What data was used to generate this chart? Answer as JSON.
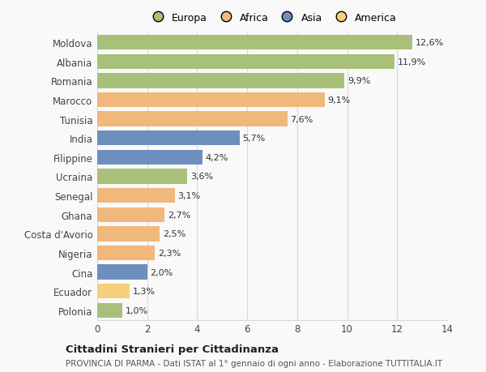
{
  "countries": [
    "Moldova",
    "Albania",
    "Romania",
    "Marocco",
    "Tunisia",
    "India",
    "Filippine",
    "Ucraina",
    "Senegal",
    "Ghana",
    "Costa d'Avorio",
    "Nigeria",
    "Cina",
    "Ecuador",
    "Polonia"
  ],
  "values": [
    12.6,
    11.9,
    9.9,
    9.1,
    7.6,
    5.7,
    4.2,
    3.6,
    3.1,
    2.7,
    2.5,
    2.3,
    2.0,
    1.3,
    1.0
  ],
  "labels": [
    "12,6%",
    "11,9%",
    "9,9%",
    "9,1%",
    "7,6%",
    "5,7%",
    "4,2%",
    "3,6%",
    "3,1%",
    "2,7%",
    "2,5%",
    "2,3%",
    "2,0%",
    "1,3%",
    "1,0%"
  ],
  "colors": [
    "#a8c07a",
    "#a8c07a",
    "#a8c07a",
    "#f0b87a",
    "#f0b87a",
    "#6e8fbe",
    "#6e8fbe",
    "#a8c07a",
    "#f0b87a",
    "#f0b87a",
    "#f0b87a",
    "#f0b87a",
    "#6e8fbe",
    "#f5d07a",
    "#a8c07a"
  ],
  "legend_labels": [
    "Europa",
    "Africa",
    "Asia",
    "America"
  ],
  "legend_colors": [
    "#a8c07a",
    "#f0b87a",
    "#6e8fbe",
    "#f5d07a"
  ],
  "title": "Cittadini Stranieri per Cittadinanza",
  "subtitle": "PROVINCIA DI PARMA - Dati ISTAT al 1° gennaio di ogni anno - Elaborazione TUTTITALIA.IT",
  "xlim": [
    0,
    14
  ],
  "xticks": [
    0,
    2,
    4,
    6,
    8,
    10,
    12,
    14
  ],
  "background_color": "#f9f9f9",
  "grid_color": "#d8d8d8",
  "bar_height": 0.78,
  "label_fontsize": 8,
  "ytick_fontsize": 8.5,
  "xtick_fontsize": 8.5,
  "title_fontsize": 9.5,
  "subtitle_fontsize": 7.5,
  "legend_fontsize": 9
}
